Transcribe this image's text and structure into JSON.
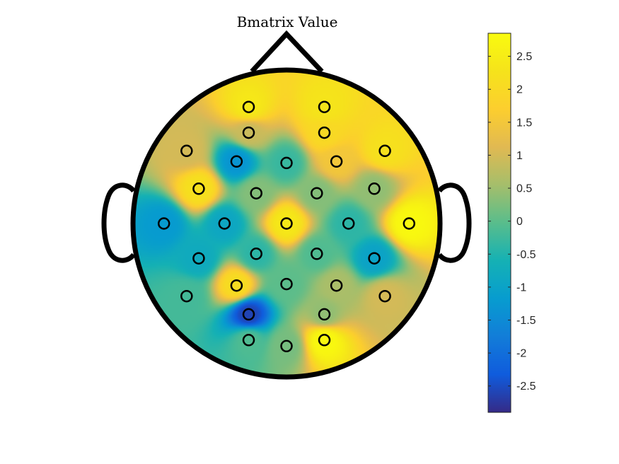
{
  "chart_data": {
    "type": "heatmap",
    "subtype": "eeg-topographic-map",
    "title": "Bmatrix Value",
    "colormap": "parula",
    "clim": [
      -2.9,
      2.85
    ],
    "colorbar": {
      "location": "right",
      "ticks": [
        2.5,
        2,
        1.5,
        1,
        0.5,
        0,
        -0.5,
        -1,
        -1.5,
        -2,
        -2.5
      ],
      "tick_labels": [
        "2.5",
        "2",
        "1.5",
        "1",
        "0.5",
        "0",
        "-0.5",
        "-1",
        "-1.5",
        "-2",
        "-2.5"
      ]
    },
    "head_outline": {
      "nose": true,
      "ears": true
    },
    "electrodes": [
      {
        "x": -0.25,
        "y": 0.77,
        "value": 2.4
      },
      {
        "x": 0.25,
        "y": 0.77,
        "value": 2.3
      },
      {
        "x": -0.25,
        "y": 0.6,
        "value": 0.9
      },
      {
        "x": 0.25,
        "y": 0.6,
        "value": 2.0
      },
      {
        "x": -0.66,
        "y": 0.48,
        "value": 1.0
      },
      {
        "x": 0.65,
        "y": 0.48,
        "value": 2.2
      },
      {
        "x": -0.33,
        "y": 0.41,
        "value": -1.3
      },
      {
        "x": 0.0,
        "y": 0.4,
        "value": -0.3
      },
      {
        "x": 0.33,
        "y": 0.41,
        "value": 1.5
      },
      {
        "x": -0.58,
        "y": 0.23,
        "value": 2.2
      },
      {
        "x": -0.2,
        "y": 0.2,
        "value": 0.3
      },
      {
        "x": 0.2,
        "y": 0.2,
        "value": 0.3
      },
      {
        "x": 0.58,
        "y": 0.23,
        "value": 0.4
      },
      {
        "x": -0.81,
        "y": 0.0,
        "value": -1.2
      },
      {
        "x": -0.41,
        "y": 0.0,
        "value": -0.9
      },
      {
        "x": 0.0,
        "y": 0.0,
        "value": 2.4
      },
      {
        "x": 0.41,
        "y": 0.0,
        "value": -0.4
      },
      {
        "x": 0.81,
        "y": 0.0,
        "value": 2.8
      },
      {
        "x": -0.58,
        "y": -0.23,
        "value": -0.8
      },
      {
        "x": -0.2,
        "y": -0.2,
        "value": -0.4
      },
      {
        "x": 0.2,
        "y": -0.2,
        "value": -0.1
      },
      {
        "x": 0.58,
        "y": -0.23,
        "value": -1.0
      },
      {
        "x": -0.33,
        "y": -0.41,
        "value": 2.1
      },
      {
        "x": 0.0,
        "y": -0.4,
        "value": 0.0
      },
      {
        "x": 0.33,
        "y": -0.41,
        "value": 0.6
      },
      {
        "x": -0.66,
        "y": -0.48,
        "value": -0.2
      },
      {
        "x": 0.65,
        "y": -0.48,
        "value": 1.0
      },
      {
        "x": -0.25,
        "y": -0.6,
        "value": -2.6
      },
      {
        "x": 0.25,
        "y": -0.6,
        "value": 0.4
      },
      {
        "x": -0.25,
        "y": -0.77,
        "value": -0.1
      },
      {
        "x": 0.0,
        "y": -0.81,
        "value": 0.2
      },
      {
        "x": 0.25,
        "y": -0.77,
        "value": 2.8
      }
    ]
  }
}
